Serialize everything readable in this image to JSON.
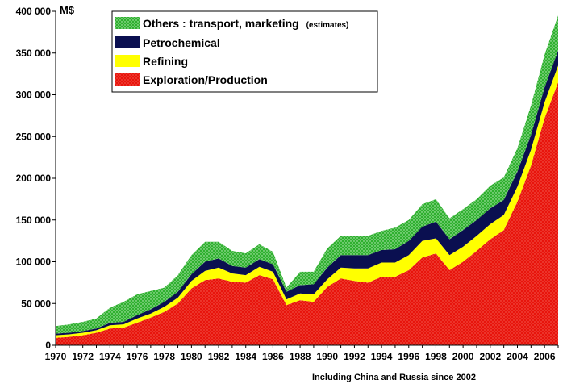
{
  "chart_data": {
    "type": "area",
    "stacked": true,
    "unit_label": "M$",
    "note": "Including China and Russia since 2002",
    "x": [
      1970,
      1971,
      1972,
      1973,
      1974,
      1975,
      1976,
      1977,
      1978,
      1979,
      1980,
      1981,
      1982,
      1983,
      1984,
      1985,
      1986,
      1987,
      1988,
      1989,
      1990,
      1991,
      1992,
      1993,
      1994,
      1995,
      1996,
      1997,
      1998,
      1999,
      2000,
      2001,
      2002,
      2003,
      2004,
      2005,
      2006,
      2007
    ],
    "x_tick_labels": [
      "1970",
      "1972",
      "1974",
      "1976",
      "1978",
      "1980",
      "1982",
      "1984",
      "1986",
      "1988",
      "1990",
      "1992",
      "1994",
      "1996",
      "1998",
      "2000",
      "2002",
      "2004",
      "2006"
    ],
    "y_tick_labels": [
      "0",
      "50 000",
      "100 000",
      "150 000",
      "200 000",
      "250 000",
      "300 000",
      "350 000",
      "400 000"
    ],
    "ylim": [
      0,
      400000
    ],
    "xlim": [
      1970,
      2007
    ],
    "grid": false,
    "legend_position": "top-left",
    "series": [
      {
        "name": "Exploration/Production",
        "color": "#e8140c",
        "pattern": "dots",
        "values": [
          9000,
          10000,
          12000,
          15000,
          20000,
          21000,
          27000,
          33000,
          40000,
          50000,
          68000,
          78000,
          80000,
          76000,
          75000,
          84000,
          79000,
          48000,
          54000,
          52000,
          70000,
          80000,
          77000,
          75000,
          82000,
          82000,
          90000,
          105000,
          110000,
          90000,
          100000,
          113000,
          127000,
          138000,
          172000,
          215000,
          272000,
          315000
        ]
      },
      {
        "name": "Refining",
        "color": "#ffff00",
        "pattern": "solid",
        "values": [
          3000,
          3000,
          3000,
          3000,
          4000,
          4000,
          5000,
          5000,
          6000,
          7000,
          9000,
          11000,
          13000,
          10000,
          9000,
          10000,
          9000,
          7000,
          8000,
          9000,
          9000,
          13000,
          15000,
          17000,
          17000,
          17000,
          18000,
          20000,
          18000,
          18000,
          18000,
          18000,
          18000,
          18000,
          18000,
          19000,
          19000,
          20000
        ]
      },
      {
        "name": "Petrochemical",
        "color": "#0a0f50",
        "pattern": "solid",
        "values": [
          2000,
          2000,
          2000,
          2000,
          3000,
          3000,
          4000,
          5000,
          6000,
          7000,
          8000,
          11000,
          11000,
          9000,
          9000,
          9000,
          9000,
          9000,
          10000,
          12000,
          14000,
          15000,
          16000,
          16000,
          15000,
          16000,
          17000,
          17000,
          20000,
          19000,
          20000,
          19000,
          19000,
          18000,
          18000,
          18000,
          18000,
          18000
        ]
      },
      {
        "name": "Others : transport, marketing",
        "name_suffix": "(estimates)",
        "color": "#33b833",
        "pattern": "dots",
        "values": [
          9000,
          10000,
          11000,
          12000,
          18000,
          24000,
          25000,
          22000,
          17000,
          20000,
          23000,
          24000,
          20000,
          18000,
          17000,
          18000,
          15000,
          5000,
          16000,
          15000,
          23000,
          23000,
          23000,
          23000,
          23000,
          26000,
          25000,
          27000,
          27000,
          25000,
          25000,
          25000,
          27000,
          27000,
          28000,
          35000,
          39000,
          42000
        ]
      }
    ]
  }
}
